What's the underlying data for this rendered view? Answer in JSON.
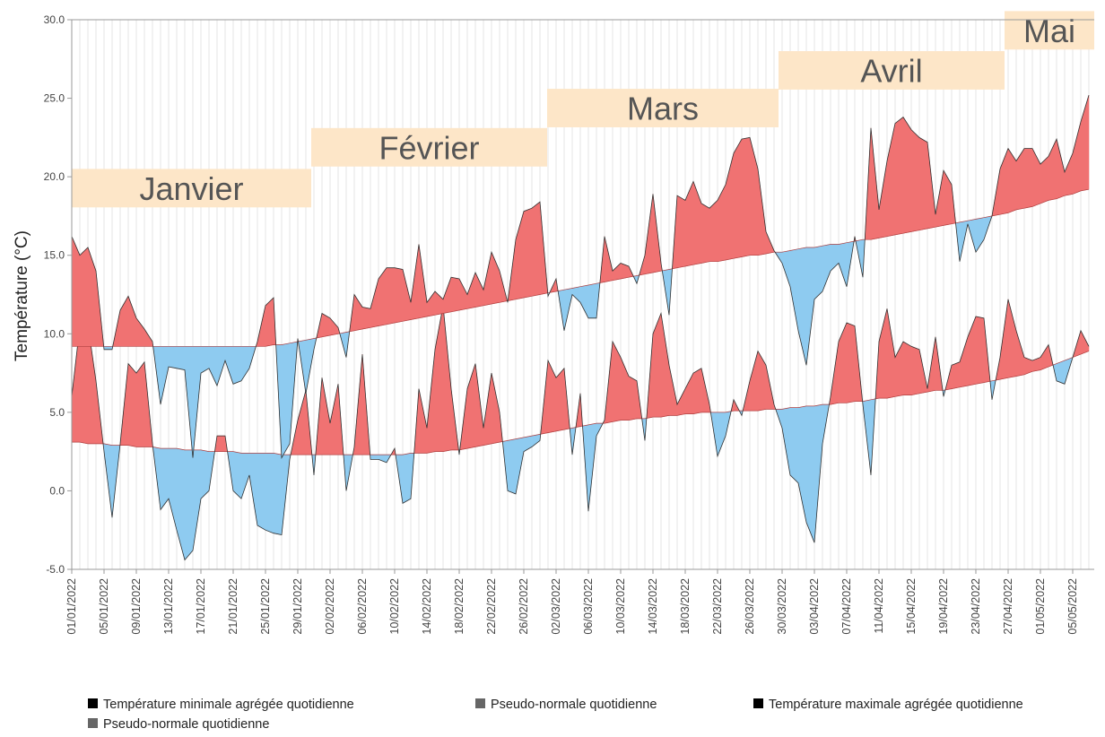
{
  "chart_data": {
    "type": "anomaly-area",
    "y_label": "Température (°C)",
    "annotations": [
      "Janvier",
      "Février",
      "Mars",
      "Avril",
      "Mai"
    ],
    "annotation_color": "#fde6c8",
    "fill_above": "#f07272",
    "fill_below": "#8ecbf0",
    "grid": "x",
    "ylim": [
      -5,
      30
    ],
    "yticks": [
      {
        "value": -5,
        "label": "-5.0"
      },
      {
        "value": 0,
        "label": "0.0"
      },
      {
        "value": 5,
        "label": "5.0"
      },
      {
        "value": 10,
        "label": "10.0"
      },
      {
        "value": 15,
        "label": "15.0"
      },
      {
        "value": 20,
        "label": "20.0"
      },
      {
        "value": 25,
        "label": "25.0"
      },
      {
        "value": 30,
        "label": "30.0"
      }
    ],
    "categories": [
      "01/01/2022",
      null,
      null,
      null,
      "05/01/2022",
      null,
      null,
      null,
      "09/01/2022",
      null,
      null,
      null,
      "13/01/2022",
      null,
      null,
      null,
      "17/01/2022",
      null,
      null,
      null,
      "21/01/2022",
      null,
      null,
      null,
      "25/01/2022",
      null,
      null,
      null,
      "29/01/2022",
      null,
      null,
      null,
      "02/02/2022",
      null,
      null,
      null,
      "06/02/2022",
      null,
      null,
      null,
      "10/02/2022",
      null,
      null,
      null,
      "14/02/2022",
      null,
      null,
      null,
      "18/02/2022",
      null,
      null,
      null,
      "22/02/2022",
      null,
      null,
      null,
      "26/02/2022",
      null,
      null,
      null,
      "02/03/2022",
      null,
      null,
      null,
      "06/03/2022",
      null,
      null,
      null,
      "10/03/2022",
      null,
      null,
      null,
      "14/03/2022",
      null,
      null,
      null,
      "18/03/2022",
      null,
      null,
      null,
      "22/03/2022",
      null,
      null,
      null,
      "26/03/2022",
      null,
      null,
      null,
      "30/03/2022",
      null,
      null,
      null,
      "03/04/2022",
      null,
      null,
      null,
      "07/04/2022",
      null,
      null,
      null,
      "11/04/2022",
      null,
      null,
      null,
      "15/04/2022",
      null,
      null,
      null,
      "19/04/2022",
      null,
      null,
      null,
      "23/04/2022",
      null,
      null,
      null,
      "27/04/2022",
      null,
      null,
      null,
      "01/05/2022",
      null,
      null,
      null,
      "05/05/2022",
      null,
      null
    ],
    "series": [
      {
        "name": "Température minimale agrégée quotidienne",
        "color": "#000000",
        "values": [
          6.0,
          10.5,
          10.6,
          7.0,
          2.5,
          -1.7,
          3.0,
          8.1,
          7.5,
          8.2,
          3.0,
          -1.2,
          -0.5,
          -2.5,
          -4.4,
          -3.8,
          -0.5,
          0.0,
          3.5,
          3.5,
          0.0,
          -0.5,
          1.0,
          -2.2,
          -2.5,
          -2.7,
          -2.8,
          2.0,
          4.5,
          6.4,
          1.0,
          7.2,
          4.3,
          6.8,
          0.0,
          2.8,
          8.7,
          2.0,
          2.0,
          1.8,
          2.7,
          -0.8,
          -0.5,
          6.5,
          4.0,
          9.0,
          11.8,
          6.5,
          2.3,
          6.5,
          8.1,
          4.0,
          7.5,
          5.0,
          0.0,
          -0.2,
          2.5,
          2.8,
          3.2,
          8.3,
          7.2,
          7.8,
          2.3,
          6.2,
          -1.3,
          3.5,
          4.5,
          9.5,
          8.5,
          7.3,
          7.0,
          3.2,
          10.0,
          11.3,
          8.0,
          5.5,
          6.5,
          7.5,
          7.8,
          5.5,
          2.2,
          3.5,
          5.8,
          4.8,
          7.0,
          8.9,
          8.0,
          5.5,
          4.0,
          1.0,
          0.5,
          -2.0,
          -3.3,
          3.0,
          6.0,
          9.5,
          10.7,
          10.5,
          5.5,
          1.0,
          9.5,
          11.6,
          8.5,
          9.5,
          9.2,
          9.0,
          6.5,
          9.8,
          6.0,
          8.0,
          8.2,
          9.8,
          11.1,
          11.0,
          5.8,
          8.5,
          12.2,
          10.2,
          8.5,
          8.3,
          8.5,
          9.3,
          7.0,
          6.8,
          8.5,
          10.2,
          9.2
        ]
      },
      {
        "name": "Pseudo-normale quotidienne",
        "color": "#666666",
        "values": [
          3.1,
          3.1,
          3.0,
          3.0,
          3.0,
          2.9,
          2.9,
          2.9,
          2.8,
          2.8,
          2.8,
          2.7,
          2.7,
          2.7,
          2.6,
          2.6,
          2.6,
          2.5,
          2.5,
          2.5,
          2.5,
          2.4,
          2.4,
          2.4,
          2.4,
          2.4,
          2.3,
          2.3,
          2.3,
          2.3,
          2.3,
          2.3,
          2.3,
          2.3,
          2.3,
          2.3,
          2.3,
          2.3,
          2.3,
          2.3,
          2.3,
          2.3,
          2.4,
          2.4,
          2.4,
          2.5,
          2.5,
          2.6,
          2.6,
          2.7,
          2.8,
          2.9,
          3.0,
          3.1,
          3.2,
          3.3,
          3.4,
          3.5,
          3.6,
          3.7,
          3.8,
          3.9,
          4.0,
          4.1,
          4.2,
          4.3,
          4.3,
          4.4,
          4.5,
          4.5,
          4.6,
          4.6,
          4.7,
          4.7,
          4.8,
          4.8,
          4.9,
          4.9,
          5.0,
          5.0,
          5.0,
          5.0,
          5.1,
          5.1,
          5.1,
          5.1,
          5.2,
          5.2,
          5.2,
          5.3,
          5.3,
          5.4,
          5.4,
          5.5,
          5.5,
          5.6,
          5.6,
          5.7,
          5.7,
          5.8,
          5.9,
          5.9,
          6.0,
          6.1,
          6.1,
          6.2,
          6.3,
          6.4,
          6.4,
          6.5,
          6.6,
          6.7,
          6.8,
          6.9,
          7.0,
          7.1,
          7.2,
          7.3,
          7.4,
          7.6,
          7.7,
          7.9,
          8.1,
          8.3,
          8.5,
          8.7,
          8.9
        ]
      },
      {
        "name": "Température maximale agrégée quotidienne",
        "color": "#000000",
        "values": [
          16.2,
          15.0,
          15.5,
          14.0,
          9.0,
          9.0,
          11.5,
          12.4,
          11.0,
          10.3,
          9.5,
          5.5,
          7.9,
          7.8,
          7.7,
          2.1,
          7.5,
          7.8,
          6.7,
          8.3,
          6.8,
          7.0,
          7.8,
          9.5,
          11.8,
          12.3,
          2.1,
          3.0,
          9.7,
          6.2,
          9.0,
          11.3,
          11.0,
          10.4,
          8.5,
          12.5,
          11.7,
          11.6,
          13.5,
          14.2,
          14.2,
          14.1,
          12.0,
          15.7,
          12.0,
          12.7,
          12.2,
          13.6,
          13.5,
          12.5,
          13.9,
          12.8,
          15.2,
          14.0,
          12.0,
          16.0,
          17.8,
          18.0,
          18.4,
          12.4,
          13.5,
          10.2,
          12.5,
          12.0,
          11.0,
          11.0,
          16.2,
          14.0,
          14.5,
          14.3,
          13.2,
          15.0,
          18.9,
          14.5,
          11.2,
          18.8,
          18.5,
          19.7,
          18.3,
          18.0,
          18.5,
          19.5,
          21.5,
          22.4,
          22.5,
          20.5,
          16.5,
          15.3,
          14.5,
          13.0,
          10.2,
          8.0,
          12.2,
          12.7,
          14.0,
          14.5,
          13.0,
          16.2,
          13.6,
          23.1,
          17.9,
          21.0,
          23.4,
          23.8,
          23.0,
          22.5,
          22.2,
          17.6,
          20.4,
          19.5,
          14.6,
          17.0,
          15.2,
          16.0,
          17.5,
          20.5,
          21.8,
          21.0,
          21.8,
          21.8,
          20.8,
          21.3,
          22.4,
          20.3,
          21.5,
          23.5,
          25.2
        ]
      },
      {
        "name": "Pseudo-normale quotidienne",
        "color": "#666666",
        "values": [
          9.2,
          9.2,
          9.2,
          9.2,
          9.2,
          9.2,
          9.2,
          9.2,
          9.2,
          9.2,
          9.2,
          9.2,
          9.2,
          9.2,
          9.2,
          9.2,
          9.2,
          9.2,
          9.2,
          9.2,
          9.2,
          9.2,
          9.2,
          9.2,
          9.2,
          9.3,
          9.3,
          9.4,
          9.5,
          9.6,
          9.7,
          9.8,
          9.9,
          10.0,
          10.1,
          10.2,
          10.3,
          10.4,
          10.5,
          10.6,
          10.7,
          10.8,
          10.9,
          11.0,
          11.1,
          11.2,
          11.3,
          11.4,
          11.5,
          11.6,
          11.7,
          11.8,
          11.9,
          12.0,
          12.1,
          12.2,
          12.3,
          12.4,
          12.5,
          12.6,
          12.7,
          12.8,
          12.9,
          13.0,
          13.1,
          13.2,
          13.3,
          13.4,
          13.5,
          13.6,
          13.7,
          13.8,
          13.9,
          14.0,
          14.1,
          14.2,
          14.3,
          14.4,
          14.5,
          14.6,
          14.6,
          14.7,
          14.8,
          14.9,
          15.0,
          15.0,
          15.1,
          15.2,
          15.2,
          15.3,
          15.4,
          15.5,
          15.5,
          15.6,
          15.7,
          15.7,
          15.8,
          15.9,
          16.0,
          16.0,
          16.1,
          16.2,
          16.3,
          16.4,
          16.5,
          16.6,
          16.7,
          16.8,
          16.9,
          17.0,
          17.1,
          17.2,
          17.3,
          17.4,
          17.5,
          17.6,
          17.7,
          17.9,
          18.0,
          18.1,
          18.3,
          18.5,
          18.6,
          18.8,
          18.9,
          19.1,
          19.2
        ]
      }
    ]
  }
}
